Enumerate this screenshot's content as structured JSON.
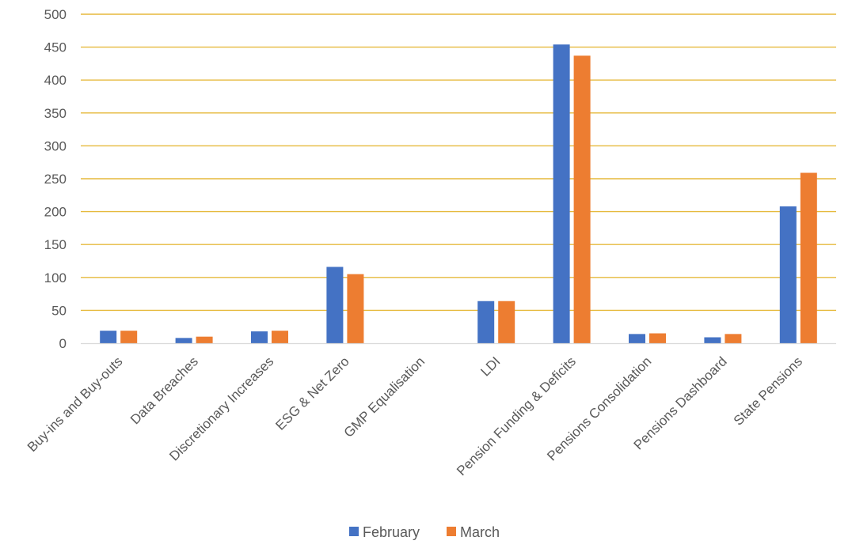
{
  "chart_data": {
    "type": "bar",
    "title": "",
    "xlabel": "",
    "ylabel": "",
    "categories": [
      "Buy-ins and Buy-outs",
      "Data Breaches",
      "Discretionary Increases",
      "ESG & Net Zero",
      "GMP Equalisation",
      "LDI",
      "Pension Funding & Deficits",
      "Pensions Consolidation",
      "Pensions Dashboard",
      "State Pensions"
    ],
    "series": [
      {
        "name": "February",
        "color": "#4472C4",
        "values": [
          19,
          8,
          18,
          116,
          0,
          64,
          454,
          14,
          9,
          208
        ]
      },
      {
        "name": "March",
        "color": "#ED7D31",
        "values": [
          19,
          10,
          19,
          105,
          0,
          64,
          437,
          15,
          14,
          259
        ]
      }
    ],
    "ylim": [
      0,
      500
    ],
    "yticks": [
      0,
      50,
      100,
      150,
      200,
      250,
      300,
      350,
      400,
      450,
      500
    ],
    "grid": true,
    "grid_color": "#E6B93C",
    "legend_position": "bottom"
  }
}
